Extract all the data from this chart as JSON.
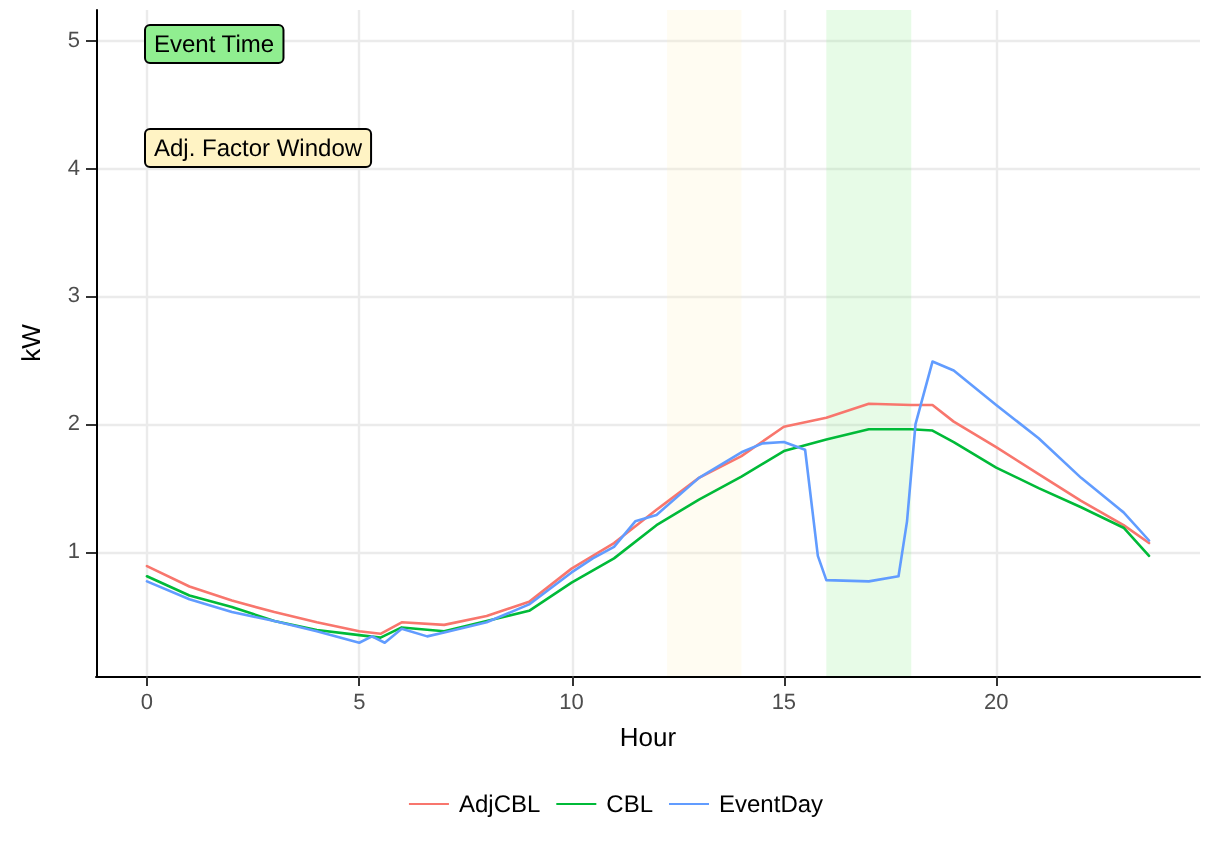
{
  "chart_data": {
    "type": "line",
    "xlabel": "Hour",
    "ylabel": "kW",
    "xlim": [
      -1.2,
      24.8
    ],
    "ylim": [
      0.03,
      5.24
    ],
    "xticks": [
      0,
      5,
      10,
      15,
      20
    ],
    "yticks": [
      1,
      2,
      3,
      4,
      5
    ],
    "grid": true,
    "legend": "bottom",
    "marker": "none",
    "line_style": "solid",
    "annotations": [
      "Event Time",
      "Adj. Factor Window"
    ],
    "bands": [
      {
        "axis": "x",
        "from": 16,
        "to": 18,
        "color": "#90ee90"
      },
      {
        "axis": "x",
        "from": 12.25,
        "to": 14,
        "color": "#fff3c4"
      }
    ],
    "series": [
      {
        "name": "AdjCBL",
        "color": "#f8766d",
        "x": [
          0,
          1,
          2,
          3,
          4,
          5,
          5.5,
          6,
          7,
          8,
          9,
          10,
          11,
          12,
          13,
          14,
          15,
          16,
          17,
          18,
          18.5,
          19,
          20,
          21,
          22,
          23,
          23.6
        ],
        "values": [
          0.89,
          0.73,
          0.62,
          0.53,
          0.45,
          0.38,
          0.36,
          0.45,
          0.43,
          0.5,
          0.61,
          0.87,
          1.07,
          1.33,
          1.58,
          1.75,
          1.98,
          2.05,
          2.16,
          2.15,
          2.15,
          2.02,
          1.82,
          1.61,
          1.4,
          1.21,
          1.07
        ]
      },
      {
        "name": "CBL",
        "color": "#00ba38",
        "x": [
          0,
          1,
          2,
          3,
          4,
          5,
          5.5,
          6,
          7,
          8,
          9,
          10,
          11,
          12,
          13,
          14,
          15,
          16,
          17,
          18,
          18.5,
          19,
          20,
          21,
          22,
          23,
          23.6
        ],
        "values": [
          0.81,
          0.66,
          0.57,
          0.46,
          0.39,
          0.35,
          0.33,
          0.41,
          0.38,
          0.46,
          0.54,
          0.76,
          0.95,
          1.21,
          1.41,
          1.59,
          1.79,
          1.88,
          1.96,
          1.96,
          1.95,
          1.86,
          1.66,
          1.5,
          1.35,
          1.19,
          0.97
        ]
      },
      {
        "name": "EventDay",
        "color": "#619cff",
        "x": [
          0,
          1,
          2,
          3,
          4,
          5,
          5.3,
          5.6,
          6,
          6.6,
          7,
          8,
          9,
          10,
          10.5,
          11,
          11.5,
          12,
          13,
          14,
          14.5,
          15,
          15.5,
          15.8,
          16,
          17,
          17.7,
          17.9,
          18.1,
          18.5,
          19,
          20,
          21,
          22,
          23,
          23.6
        ],
        "values": [
          0.77,
          0.63,
          0.53,
          0.46,
          0.38,
          0.29,
          0.34,
          0.29,
          0.4,
          0.34,
          0.37,
          0.45,
          0.59,
          0.84,
          0.95,
          1.04,
          1.24,
          1.29,
          1.58,
          1.78,
          1.85,
          1.86,
          1.8,
          0.97,
          0.78,
          0.77,
          0.81,
          1.24,
          2.0,
          2.49,
          2.42,
          2.15,
          1.89,
          1.58,
          1.31,
          1.09
        ]
      }
    ]
  }
}
